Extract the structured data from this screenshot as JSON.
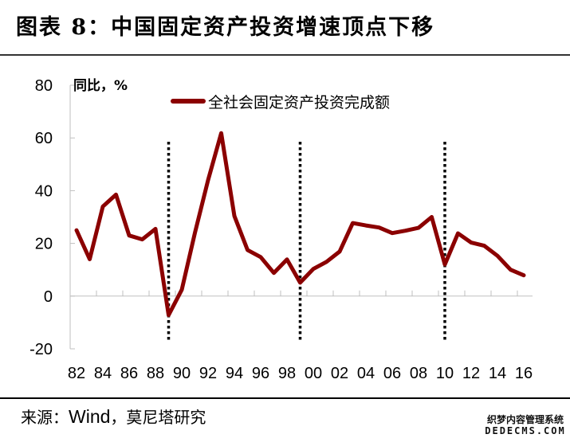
{
  "title": "图表 8：中国固定资产投资增速顶点下移",
  "source": {
    "prefix": "来源：",
    "latin": "Wind",
    "suffix": "，莫尼塔研究"
  },
  "watermark": {
    "line1": "织梦内容管理系统",
    "line2": "DEDECMS.COM"
  },
  "colors": {
    "series": "#8b0000",
    "axis": "#bfbfbf",
    "marker_lines": "#000000"
  },
  "chart_data": {
    "type": "line",
    "title": "图表 8：中国固定资产投资增速顶点下移",
    "xlabel": "",
    "ylabel": "同比，%",
    "ylim": [
      -20,
      80
    ],
    "yticks": [
      -20,
      0,
      20,
      40,
      60,
      80
    ],
    "xtick_labels": [
      "82",
      "84",
      "86",
      "88",
      "90",
      "92",
      "94",
      "96",
      "98",
      "00",
      "02",
      "04",
      "06",
      "08",
      "10",
      "12",
      "14",
      "16"
    ],
    "grid": false,
    "legend_position": "top",
    "x": [
      1982,
      1983,
      1984,
      1985,
      1986,
      1987,
      1988,
      1989,
      1990,
      1991,
      1992,
      1993,
      1994,
      1995,
      1996,
      1997,
      1998,
      1999,
      2000,
      2001,
      2002,
      2003,
      2004,
      2005,
      2006,
      2007,
      2008,
      2009,
      2010,
      2011,
      2012,
      2013,
      2014,
      2015,
      2016
    ],
    "series": [
      {
        "name": "全社会固定资产投资完成额",
        "values": [
          25,
          14,
          34,
          38.5,
          23,
          21.5,
          25.5,
          -7.2,
          2.4,
          24,
          44,
          61.8,
          30.4,
          17.5,
          14.8,
          8.8,
          13.9,
          5.1,
          10.3,
          13,
          16.9,
          27.7,
          26.8,
          26,
          23.9,
          24.8,
          25.9,
          30,
          12,
          23.8,
          20.3,
          19.1,
          15.3,
          10,
          7.9
        ]
      }
    ],
    "annotations": [
      {
        "type": "vertical-dotted-line",
        "x": 1989
      },
      {
        "type": "vertical-dotted-line",
        "x": 1999
      },
      {
        "type": "vertical-dotted-line",
        "x": 2010
      }
    ]
  }
}
